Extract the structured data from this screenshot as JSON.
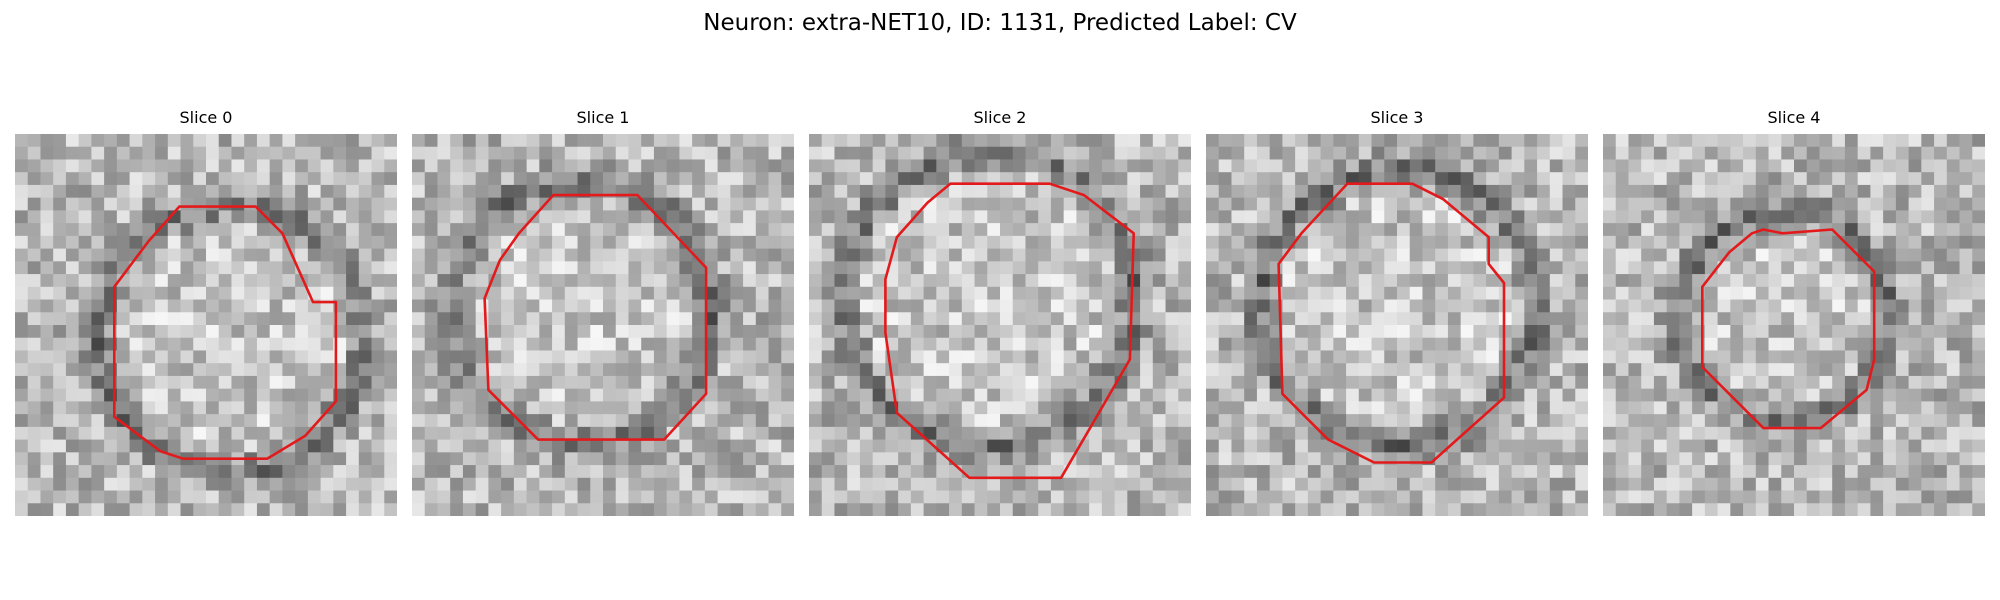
{
  "figure": {
    "title": "Neuron: extra-NET10, ID: 1131, Predicted Label: CV",
    "contour_color": "#e31a1c"
  },
  "panels": [
    {
      "title": "Slice 0",
      "contour": [
        [
          0.43,
          0.19
        ],
        [
          0.63,
          0.19
        ],
        [
          0.7,
          0.26
        ],
        [
          0.78,
          0.44
        ],
        [
          0.84,
          0.44
        ],
        [
          0.84,
          0.7
        ],
        [
          0.76,
          0.79
        ],
        [
          0.66,
          0.85
        ],
        [
          0.44,
          0.85
        ],
        [
          0.38,
          0.83
        ],
        [
          0.26,
          0.74
        ],
        [
          0.26,
          0.4
        ],
        [
          0.35,
          0.28
        ]
      ]
    },
    {
      "title": "Slice 1",
      "contour": [
        [
          0.37,
          0.16
        ],
        [
          0.59,
          0.16
        ],
        [
          0.77,
          0.35
        ],
        [
          0.77,
          0.68
        ],
        [
          0.66,
          0.8
        ],
        [
          0.33,
          0.8
        ],
        [
          0.2,
          0.67
        ],
        [
          0.19,
          0.43
        ],
        [
          0.23,
          0.33
        ],
        [
          0.28,
          0.26
        ]
      ]
    },
    {
      "title": "Slice 2",
      "contour": [
        [
          0.37,
          0.13
        ],
        [
          0.63,
          0.13
        ],
        [
          0.72,
          0.16
        ],
        [
          0.85,
          0.26
        ],
        [
          0.84,
          0.59
        ],
        [
          0.66,
          0.9
        ],
        [
          0.42,
          0.9
        ],
        [
          0.23,
          0.73
        ],
        [
          0.2,
          0.52
        ],
        [
          0.2,
          0.38
        ],
        [
          0.23,
          0.27
        ],
        [
          0.31,
          0.18
        ]
      ]
    },
    {
      "title": "Slice 3",
      "contour": [
        [
          0.37,
          0.13
        ],
        [
          0.54,
          0.13
        ],
        [
          0.62,
          0.17
        ],
        [
          0.74,
          0.27
        ],
        [
          0.74,
          0.34
        ],
        [
          0.78,
          0.39
        ],
        [
          0.78,
          0.69
        ],
        [
          0.59,
          0.86
        ],
        [
          0.44,
          0.86
        ],
        [
          0.32,
          0.8
        ],
        [
          0.2,
          0.68
        ],
        [
          0.19,
          0.34
        ],
        [
          0.25,
          0.26
        ]
      ]
    },
    {
      "title": "Slice 4",
      "contour": [
        [
          0.39,
          0.26
        ],
        [
          0.42,
          0.25
        ],
        [
          0.47,
          0.26
        ],
        [
          0.6,
          0.25
        ],
        [
          0.71,
          0.36
        ],
        [
          0.71,
          0.59
        ],
        [
          0.69,
          0.67
        ],
        [
          0.57,
          0.77
        ],
        [
          0.42,
          0.77
        ],
        [
          0.34,
          0.69
        ],
        [
          0.26,
          0.61
        ],
        [
          0.26,
          0.4
        ],
        [
          0.33,
          0.31
        ]
      ]
    }
  ]
}
